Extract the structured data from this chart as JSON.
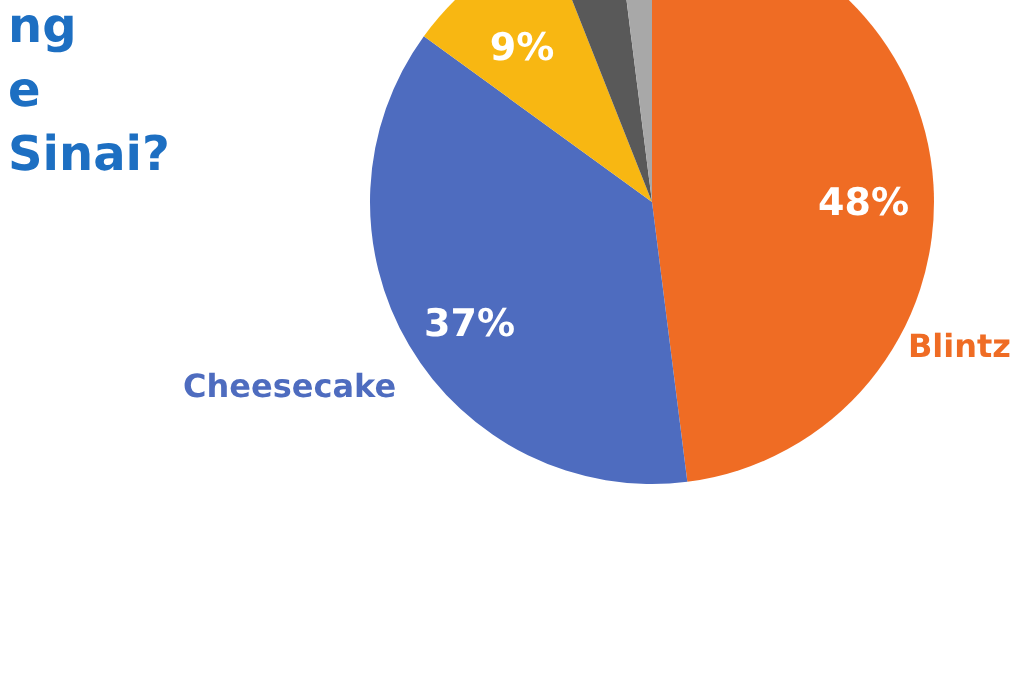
{
  "chart_data": {
    "type": "pie",
    "title": "ng\ne\nSinai?",
    "categories": [
      "Blintz",
      "Cheesecake",
      null,
      null,
      null
    ],
    "values": [
      48,
      37,
      9,
      4,
      2
    ],
    "colors": [
      "#ef6c24",
      "#4e6cbf",
      "#f8b712",
      "#595959",
      "#a8a8a8"
    ],
    "value_labels": [
      "48%",
      "37%",
      "9%",
      null,
      null
    ]
  }
}
